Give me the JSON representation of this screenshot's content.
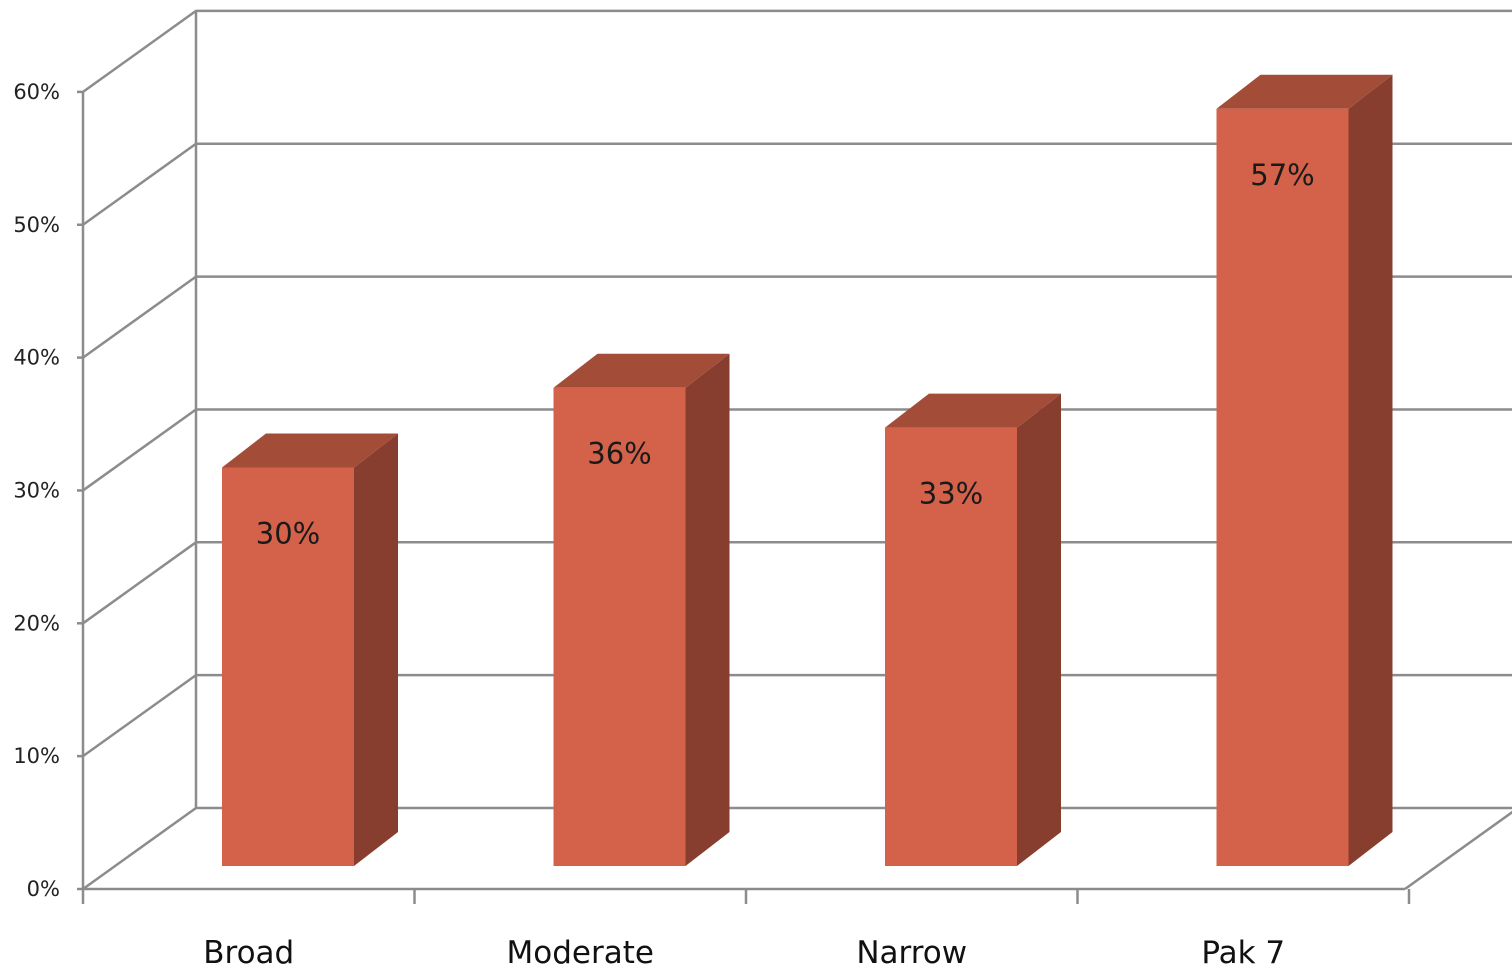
{
  "chart_data": {
    "type": "bar",
    "style": "3d-column",
    "categories": [
      "Broad",
      "Moderate",
      "Narrow",
      "Pak 7"
    ],
    "values": [
      30,
      36,
      33,
      57
    ],
    "data_labels": [
      "30%",
      "36%",
      "33%",
      "57%"
    ],
    "y_ticks": [
      "0%",
      "10%",
      "20%",
      "30%",
      "40%",
      "50%",
      "60%"
    ],
    "ylim": [
      0,
      60
    ],
    "grid": true,
    "legend": "none",
    "title": "",
    "xlabel": "",
    "ylabel": "",
    "colors": {
      "bar_front": "#d4624a",
      "bar_top": "#a34c38",
      "bar_side": "#873e2f",
      "gridline": "#8c8c8c"
    }
  }
}
